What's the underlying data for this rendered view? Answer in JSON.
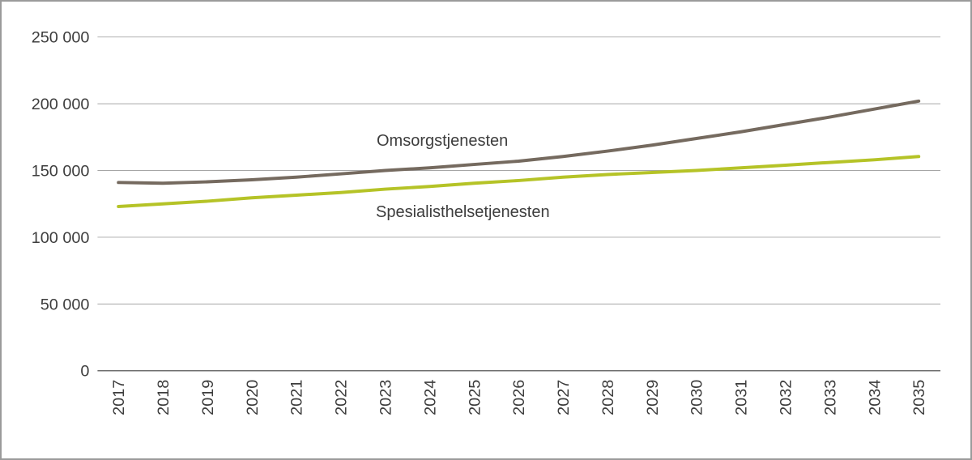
{
  "chart_data": {
    "type": "line",
    "title": "",
    "xlabel": "",
    "ylabel": "",
    "ylim": [
      0,
      250000
    ],
    "grid": "horizontal-gridlines",
    "legend_position": "inline-labels-on-plot",
    "categories": [
      "2017",
      "2018",
      "2019",
      "2020",
      "2021",
      "2022",
      "2023",
      "2024",
      "2025",
      "2026",
      "2027",
      "2028",
      "2029",
      "2030",
      "2031",
      "2032",
      "2033",
      "2034",
      "2035"
    ],
    "yticks": [
      {
        "value": 0,
        "label": "0"
      },
      {
        "value": 50000,
        "label": "50 000"
      },
      {
        "value": 100000,
        "label": "100 000"
      },
      {
        "value": 150000,
        "label": "150 000"
      },
      {
        "value": 200000,
        "label": "200 000"
      },
      {
        "value": 250000,
        "label": "250 000"
      }
    ],
    "series": [
      {
        "name": "Omsorgstjenesten",
        "color": "#756a5f",
        "values": [
          141000,
          140500,
          141500,
          143000,
          145000,
          147500,
          150000,
          152000,
          154500,
          157000,
          160500,
          164500,
          169000,
          174000,
          179000,
          184500,
          190000,
          196000,
          202000
        ]
      },
      {
        "name": "Spesialisthelsetjenesten",
        "color": "#b5c327",
        "values": [
          123000,
          125000,
          127000,
          129500,
          131500,
          133500,
          136000,
          138000,
          140500,
          142500,
          145000,
          147000,
          148500,
          150000,
          152000,
          154000,
          156000,
          158000,
          160500
        ]
      }
    ],
    "styles": {
      "grid_color": "#a6a6a6",
      "axis_color": "#6e6e6e",
      "tick_text_color": "#3d3d3d",
      "series_label_color": "#3d3d3d",
      "line_width": 4
    }
  }
}
